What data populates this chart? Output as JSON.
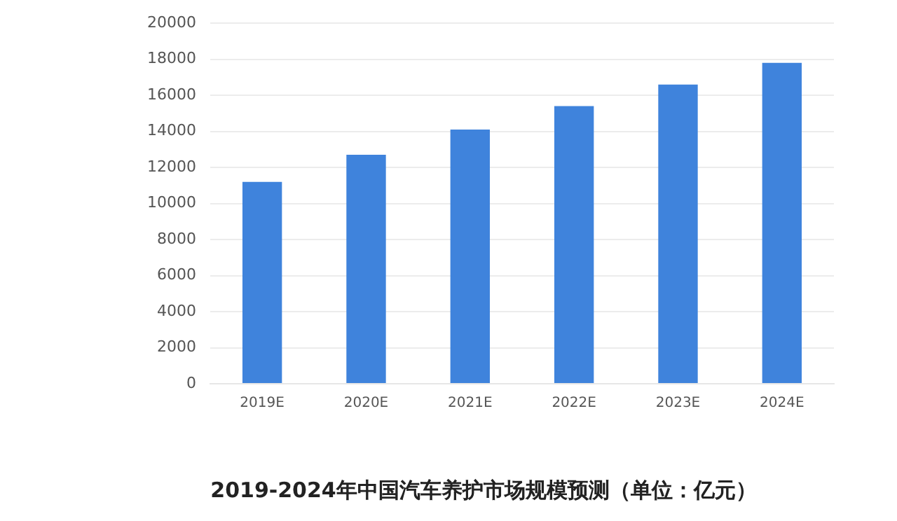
{
  "chart_data": {
    "type": "bar",
    "title": "2019-2024年中国汽车养护市场规模预测（单位：亿元）",
    "categories": [
      "2019E",
      "2020E",
      "2021E",
      "2022E",
      "2023E",
      "2024E"
    ],
    "values": [
      11200,
      12700,
      14100,
      15400,
      16600,
      17800
    ],
    "color": "#3f83dc",
    "ylim": [
      0,
      20000
    ],
    "yticks": [
      0,
      2000,
      4000,
      6000,
      8000,
      10000,
      12000,
      14000,
      16000,
      18000,
      20000
    ],
    "grid": "y",
    "legend": false
  }
}
